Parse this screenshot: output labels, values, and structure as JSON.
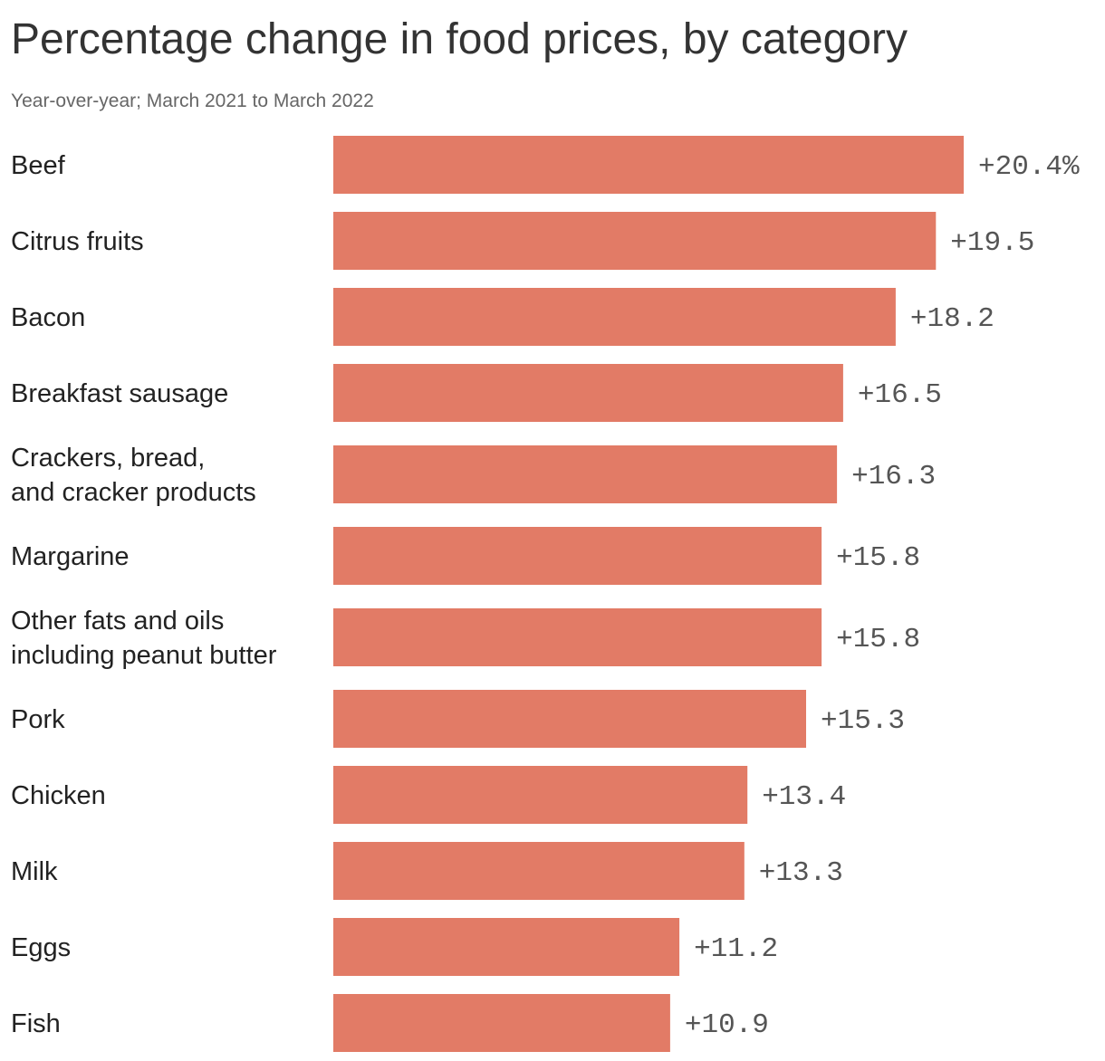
{
  "chart_data": {
    "type": "bar",
    "orientation": "horizontal",
    "title": "Percentage change in food prices, by category",
    "subtitle": "Year-over-year; March 2021 to March 2022",
    "categories": [
      [
        "Beef"
      ],
      [
        "Citrus fruits"
      ],
      [
        "Bacon"
      ],
      [
        "Breakfast sausage"
      ],
      [
        "Crackers, bread,",
        "and cracker products"
      ],
      [
        "Margarine"
      ],
      [
        "Other fats and oils",
        "including peanut butter"
      ],
      [
        "Pork"
      ],
      [
        "Chicken"
      ],
      [
        "Milk"
      ],
      [
        "Eggs"
      ],
      [
        "Fish"
      ]
    ],
    "values": [
      20.4,
      19.5,
      18.2,
      16.5,
      16.3,
      15.8,
      15.8,
      15.3,
      13.4,
      13.3,
      11.2,
      10.9
    ],
    "value_labels": [
      "+20.4%",
      "+19.5",
      "+18.2",
      "+16.5",
      "+16.3",
      "+15.8",
      "+15.8",
      "+15.3",
      "+13.4",
      "+13.3",
      "+11.2",
      "+10.9"
    ],
    "xlim": [
      0,
      20.4
    ],
    "grid": false,
    "legend": "none",
    "bar_color": "#e27b66"
  }
}
